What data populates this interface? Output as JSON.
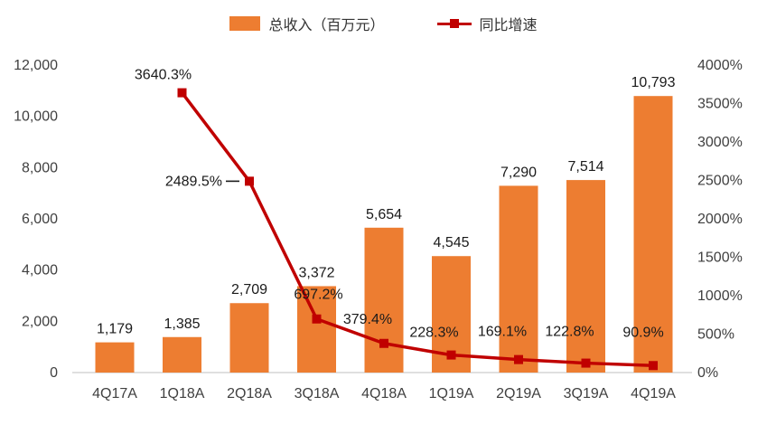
{
  "chart_data": {
    "type": "bar",
    "subtype": "combo-bar-line",
    "title": "",
    "categories": [
      "4Q17A",
      "1Q18A",
      "2Q18A",
      "3Q18A",
      "4Q18A",
      "1Q19A",
      "2Q19A",
      "3Q19A",
      "4Q19A"
    ],
    "series": [
      {
        "name": "总收入（百万元）",
        "type": "bar",
        "axis": "left",
        "color": "#ED7D31",
        "values": [
          1179,
          1385,
          2709,
          3372,
          5654,
          4545,
          7290,
          7514,
          10793
        ],
        "labels": [
          "1,179",
          "1,385",
          "2,709",
          "3,372",
          "5,654",
          "4,545",
          "7,290",
          "7,514",
          "10,793"
        ]
      },
      {
        "name": "同比增速",
        "type": "line",
        "axis": "right",
        "color": "#C00000",
        "values": [
          null,
          3640.3,
          2489.5,
          697.2,
          379.4,
          228.3,
          169.1,
          122.8,
          90.9
        ],
        "labels": [
          null,
          "3640.3%",
          "2489.5%",
          "697.2%",
          "379.4%",
          "228.3%",
          "169.1%",
          "122.8%",
          "90.9%"
        ]
      }
    ],
    "left_axis": {
      "min": 0,
      "max": 12000,
      "step": 2000,
      "tick_labels": [
        "0",
        "2,000",
        "4,000",
        "6,000",
        "8,000",
        "10,000",
        "12,000"
      ]
    },
    "right_axis": {
      "min": 0,
      "max": 4000,
      "step": 500,
      "tick_labels": [
        "0%",
        "500%",
        "1000%",
        "1500%",
        "2000%",
        "2500%",
        "3000%",
        "3500%",
        "4000%"
      ]
    },
    "legend_position": "top",
    "grid": false,
    "text_color": "#1a1a1a",
    "axis_text_color": "#404040",
    "axis_line_color": "#bfbfbf"
  }
}
